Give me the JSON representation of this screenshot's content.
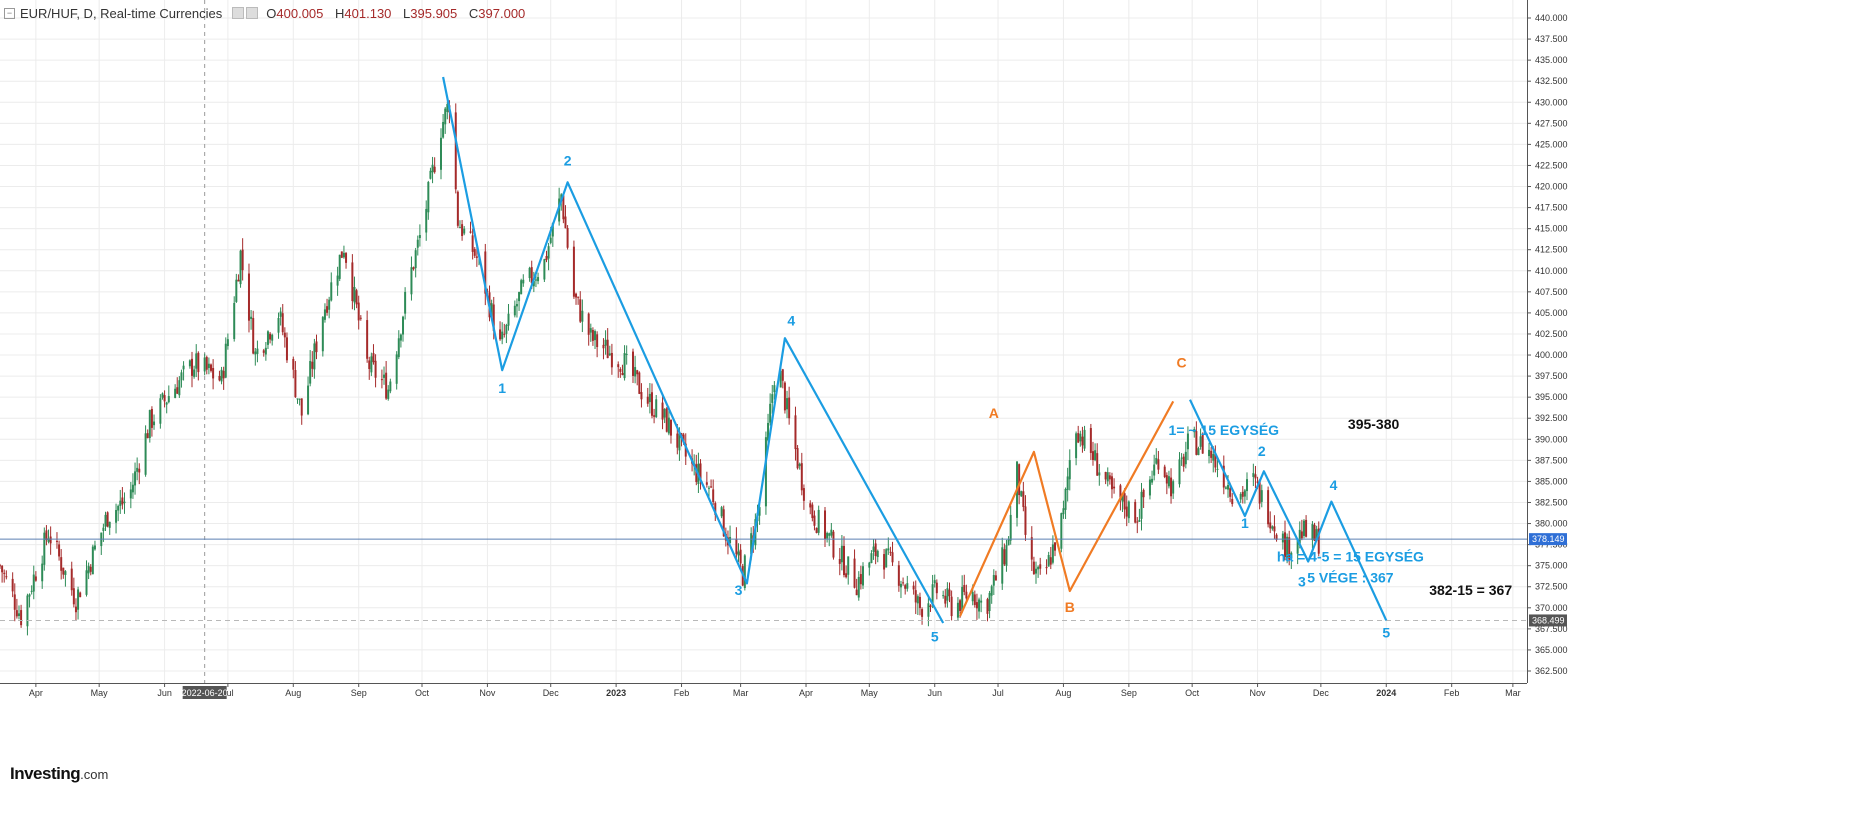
{
  "header": {
    "symbol": "EUR/HUF, D, Real-time Currencies",
    "ohlc": {
      "o_label": "O",
      "o": "400.005",
      "h_label": "H",
      "h": "401.130",
      "l_label": "L",
      "l": "395.905",
      "c_label": "C",
      "c": "397.000"
    }
  },
  "logo": {
    "name": "Investing",
    "suffix": ".com"
  },
  "colors": {
    "up": "#2e8b57",
    "down": "#a52a2a",
    "wave": "#1b9de2",
    "corr": "#f07b24",
    "grid": "#ececec",
    "price_line": "#5b7fb2"
  },
  "chart_data": {
    "type": "candlestick",
    "y_axis": {
      "min": 362.5,
      "max": 440.0,
      "step": 2.5,
      "ticks": [
        "440.000",
        "437.500",
        "435.000",
        "432.500",
        "430.000",
        "427.500",
        "425.000",
        "422.500",
        "420.000",
        "417.500",
        "415.000",
        "412.500",
        "410.000",
        "407.500",
        "405.000",
        "402.500",
        "400.000",
        "397.500",
        "395.000",
        "392.500",
        "390.000",
        "387.500",
        "385.000",
        "382.500",
        "380.000",
        "377.500",
        "375.000",
        "372.500",
        "370.000",
        "367.500",
        "365.000",
        "362.500"
      ]
    },
    "x_axis": {
      "labels": [
        {
          "t": "Apr",
          "d": "2022-04-01"
        },
        {
          "t": "May",
          "d": "2022-05-01"
        },
        {
          "t": "Jun",
          "d": "2022-06-01"
        },
        {
          "t": "Jul",
          "d": "2022-07-01"
        },
        {
          "t": "Aug",
          "d": "2022-08-01"
        },
        {
          "t": "Sep",
          "d": "2022-09-01"
        },
        {
          "t": "Oct",
          "d": "2022-10-01"
        },
        {
          "t": "Nov",
          "d": "2022-11-01"
        },
        {
          "t": "Dec",
          "d": "2022-12-01"
        },
        {
          "t": "2023",
          "d": "2023-01-01"
        },
        {
          "t": "Feb",
          "d": "2023-02-01"
        },
        {
          "t": "Mar",
          "d": "2023-03-01"
        },
        {
          "t": "Apr",
          "d": "2023-04-01"
        },
        {
          "t": "May",
          "d": "2023-05-01"
        },
        {
          "t": "Jun",
          "d": "2023-06-01"
        },
        {
          "t": "Jul",
          "d": "2023-07-01"
        },
        {
          "t": "Aug",
          "d": "2023-08-01"
        },
        {
          "t": "Sep",
          "d": "2023-09-01"
        },
        {
          "t": "Oct",
          "d": "2023-10-01"
        },
        {
          "t": "Nov",
          "d": "2023-11-01"
        },
        {
          "t": "Dec",
          "d": "2023-12-01"
        },
        {
          "t": "2024",
          "d": "2024-01-01"
        },
        {
          "t": "Feb",
          "d": "2024-02-01"
        },
        {
          "t": "Mar",
          "d": "2024-03-01"
        }
      ],
      "cursor": {
        "t": "2022-06-20",
        "d": "2022-06-20"
      }
    },
    "price_levels": [
      {
        "value": 378.149,
        "label": "378.149",
        "style": "solid"
      },
      {
        "value": 368.499,
        "label": "368.499",
        "style": "dashed"
      }
    ],
    "price_path": [
      {
        "d": "2022-03-15",
        "v": 375
      },
      {
        "d": "2022-03-25",
        "v": 369
      },
      {
        "d": "2022-04-07",
        "v": 379
      },
      {
        "d": "2022-04-20",
        "v": 371
      },
      {
        "d": "2022-05-05",
        "v": 381
      },
      {
        "d": "2022-05-15",
        "v": 383
      },
      {
        "d": "2022-05-25",
        "v": 392
      },
      {
        "d": "2022-06-05",
        "v": 396
      },
      {
        "d": "2022-06-15",
        "v": 399
      },
      {
        "d": "2022-06-28",
        "v": 397
      },
      {
        "d": "2022-07-07",
        "v": 412
      },
      {
        "d": "2022-07-14",
        "v": 400
      },
      {
        "d": "2022-07-25",
        "v": 405
      },
      {
        "d": "2022-08-05",
        "v": 393
      },
      {
        "d": "2022-08-15",
        "v": 405
      },
      {
        "d": "2022-08-25",
        "v": 413
      },
      {
        "d": "2022-09-05",
        "v": 399
      },
      {
        "d": "2022-09-15",
        "v": 396
      },
      {
        "d": "2022-09-25",
        "v": 409
      },
      {
        "d": "2022-10-01",
        "v": 415
      },
      {
        "d": "2022-10-10",
        "v": 427
      },
      {
        "d": "2022-10-14",
        "v": 430
      },
      {
        "d": "2022-10-18",
        "v": 416
      },
      {
        "d": "2022-10-28",
        "v": 411
      },
      {
        "d": "2022-11-07",
        "v": 401
      },
      {
        "d": "2022-11-18",
        "v": 408
      },
      {
        "d": "2022-11-28",
        "v": 411
      },
      {
        "d": "2022-12-06",
        "v": 419
      },
      {
        "d": "2022-12-12",
        "v": 407
      },
      {
        "d": "2022-12-20",
        "v": 402
      },
      {
        "d": "2023-01-05",
        "v": 399
      },
      {
        "d": "2023-01-15",
        "v": 395
      },
      {
        "d": "2023-01-25",
        "v": 392
      },
      {
        "d": "2023-02-05",
        "v": 387
      },
      {
        "d": "2023-02-15",
        "v": 384
      },
      {
        "d": "2023-02-22",
        "v": 379
      },
      {
        "d": "2023-03-02",
        "v": 374
      },
      {
        "d": "2023-03-10",
        "v": 382
      },
      {
        "d": "2023-03-18",
        "v": 400
      },
      {
        "d": "2023-03-24",
        "v": 392
      },
      {
        "d": "2023-04-02",
        "v": 382
      },
      {
        "d": "2023-04-15",
        "v": 377
      },
      {
        "d": "2023-04-25",
        "v": 373
      },
      {
        "d": "2023-05-05",
        "v": 377
      },
      {
        "d": "2023-05-15",
        "v": 374
      },
      {
        "d": "2023-05-25",
        "v": 370
      },
      {
        "d": "2023-06-02",
        "v": 372
      },
      {
        "d": "2023-06-10",
        "v": 370
      },
      {
        "d": "2023-06-18",
        "v": 372
      },
      {
        "d": "2023-06-25",
        "v": 370
      },
      {
        "d": "2023-07-05",
        "v": 377
      },
      {
        "d": "2023-07-10",
        "v": 386
      },
      {
        "d": "2023-07-16",
        "v": 375
      },
      {
        "d": "2023-07-22",
        "v": 373
      },
      {
        "d": "2023-08-01",
        "v": 381
      },
      {
        "d": "2023-08-06",
        "v": 392
      },
      {
        "d": "2023-08-15",
        "v": 388
      },
      {
        "d": "2023-08-25",
        "v": 383
      },
      {
        "d": "2023-09-05",
        "v": 381
      },
      {
        "d": "2023-09-15",
        "v": 388
      },
      {
        "d": "2023-09-22",
        "v": 384
      },
      {
        "d": "2023-09-30",
        "v": 390
      },
      {
        "d": "2023-10-08",
        "v": 389
      },
      {
        "d": "2023-10-15",
        "v": 386
      },
      {
        "d": "2023-10-22",
        "v": 383
      },
      {
        "d": "2023-10-30",
        "v": 385
      },
      {
        "d": "2023-11-07",
        "v": 381
      },
      {
        "d": "2023-11-15",
        "v": 377
      },
      {
        "d": "2023-11-22",
        "v": 379
      },
      {
        "d": "2023-11-30",
        "v": 378
      }
    ],
    "wave_lines": [
      {
        "name": "impulse-1",
        "color": "wave",
        "points": [
          {
            "d": "2022-10-11",
            "v": 433
          },
          {
            "d": "2022-11-08",
            "v": 398.2
          },
          {
            "d": "2022-12-09",
            "v": 420.5
          },
          {
            "d": "2023-03-04",
            "v": 372.9
          },
          {
            "d": "2023-03-22",
            "v": 402
          },
          {
            "d": "2023-06-05",
            "v": 368.2
          }
        ]
      },
      {
        "name": "abc",
        "color": "corr",
        "points": [
          {
            "d": "2023-06-13",
            "v": 369
          },
          {
            "d": "2023-07-18",
            "v": 388.5
          },
          {
            "d": "2023-08-04",
            "v": 372
          },
          {
            "d": "2023-09-22",
            "v": 394.5
          }
        ]
      },
      {
        "name": "impulse-2",
        "color": "wave",
        "points": [
          {
            "d": "2023-09-30",
            "v": 394.7
          },
          {
            "d": "2023-10-26",
            "v": 380.9
          },
          {
            "d": "2023-11-04",
            "v": 386.2
          },
          {
            "d": "2023-11-25",
            "v": 375.5
          },
          {
            "d": "2023-12-06",
            "v": 382.6
          },
          {
            "d": "2024-01-01",
            "v": 368.5
          }
        ]
      }
    ],
    "annotations": [
      {
        "text": "1",
        "d": "2022-11-08",
        "v": 395.5,
        "color": "wave"
      },
      {
        "text": "2",
        "d": "2022-12-09",
        "v": 422.5,
        "color": "wave"
      },
      {
        "text": "3",
        "d": "2023-02-28",
        "v": 371.5,
        "color": "wave"
      },
      {
        "text": "4",
        "d": "2023-03-25",
        "v": 403.5,
        "color": "wave"
      },
      {
        "text": "5",
        "d": "2023-06-01",
        "v": 366,
        "color": "wave"
      },
      {
        "text": "A",
        "d": "2023-06-29",
        "v": 392.5,
        "color": "corr"
      },
      {
        "text": "B",
        "d": "2023-08-04",
        "v": 369.5,
        "color": "corr"
      },
      {
        "text": "C",
        "d": "2023-09-26",
        "v": 398.5,
        "color": "corr"
      },
      {
        "text": "1= ~ 15 EGYSÉG",
        "d": "2023-10-16",
        "v": 390.5,
        "color": "wave",
        "bold": true
      },
      {
        "text": "395-380",
        "d": "2023-12-26",
        "v": 391.2,
        "color": "black",
        "bold": true
      },
      {
        "text": "2",
        "d": "2023-11-03",
        "v": 388,
        "color": "wave"
      },
      {
        "text": "1",
        "d": "2023-10-26",
        "v": 379.5,
        "color": "wave"
      },
      {
        "text": "4",
        "d": "2023-12-07",
        "v": 384,
        "color": "wave"
      },
      {
        "text": "3",
        "d": "2023-11-22",
        "v": 372.5,
        "color": "wave"
      },
      {
        "text": "ha = 4-5 = 15 EGYSÉG",
        "d": "2023-12-15",
        "v": 375.5,
        "color": "wave",
        "bold": true
      },
      {
        "text": "5 VÉGE : 367",
        "d": "2023-12-15",
        "v": 373,
        "color": "wave",
        "bold": true
      },
      {
        "text": "382-15 = 367",
        "d": "2024-02-10",
        "v": 371.5,
        "color": "black",
        "bold": true
      },
      {
        "text": "5",
        "d": "2024-01-01",
        "v": 366.5,
        "color": "wave"
      }
    ]
  }
}
